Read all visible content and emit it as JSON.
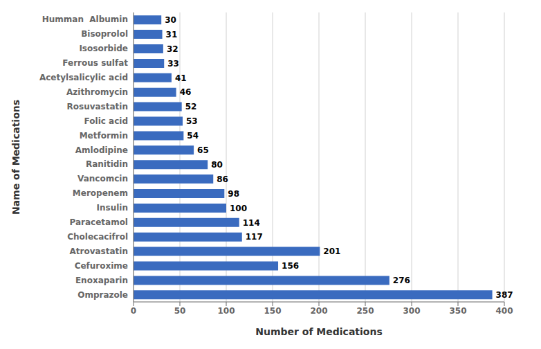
{
  "chart_data": {
    "type": "bar",
    "orientation": "horizontal",
    "categories": [
      "Humman  Albumin",
      "Bisoprolol",
      "Isosorbide",
      "Ferrous sulfat",
      "Acetylsalicylic acid",
      "Azithromycin",
      "Rosuvastatin",
      "Folic acid",
      "Metformin",
      "Amlodipine",
      "Ranitidin",
      "Vancomcin",
      "Meropenem",
      "Insulin",
      "Paracetamol",
      "Cholecacifrol",
      "Atrovastatin",
      "Cefuroxime",
      "Enoxaparin",
      "Omprazole"
    ],
    "values": [
      30,
      31,
      32,
      33,
      41,
      46,
      52,
      53,
      54,
      65,
      80,
      86,
      98,
      100,
      114,
      117,
      201,
      156,
      276,
      387
    ],
    "color": "#3A6BBF",
    "xlabel": "Number of Medications",
    "ylabel": "Name of Medications",
    "xlim": [
      0,
      400
    ],
    "xticks": [
      0,
      50,
      100,
      150,
      200,
      250,
      300,
      350,
      400
    ],
    "grid": true,
    "data_labels": true
  }
}
